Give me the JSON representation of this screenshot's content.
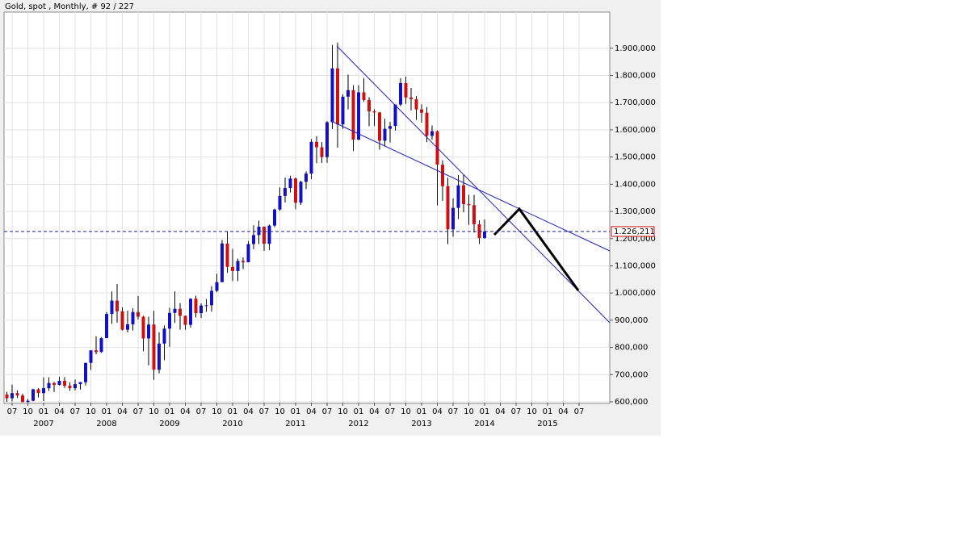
{
  "chart_data": {
    "type": "candlestick",
    "title": "Gold, spot , Monthly, # 92 / 227",
    "up_color": "#1010c8",
    "down_color": "#d01010",
    "grid": true,
    "open": [
      627,
      613,
      632,
      623,
      599,
      604,
      646,
      632,
      650,
      669,
      662,
      677,
      659,
      650,
      665,
      672,
      743,
      789,
      783,
      834,
      923,
      972,
      933,
      865,
      885,
      930,
      913,
      833,
      884,
      718,
      814,
      869,
      927,
      942,
      916,
      883,
      979,
      926,
      954,
      955,
      1008,
      1040,
      1182,
      1096,
      1081,
      1118,
      1113,
      1180,
      1213,
      1244,
      1181,
      1248,
      1307,
      1357,
      1386,
      1421,
      1332,
      1409,
      1439,
      1556,
      1536,
      1500,
      1628,
      1826,
      1620,
      1722,
      1746,
      1564,
      1738,
      1710,
      1668,
      1664,
      1560,
      1604,
      1614,
      1693,
      1772,
      1719,
      1713,
      1675,
      1663,
      1578,
      1595,
      1472,
      1393,
      1234,
      1313,
      1396,
      1327,
      1323,
      1253,
      1202
    ],
    "high": [
      637,
      663,
      642,
      630,
      610,
      648,
      650,
      690,
      690,
      673,
      692,
      691,
      672,
      682,
      673,
      744,
      790,
      841,
      838,
      930,
      1006,
      1033,
      947,
      935,
      944,
      989,
      916,
      913,
      935,
      856,
      881,
      946,
      1006,
      963,
      917,
      981,
      990,
      962,
      978,
      1025,
      1071,
      1195,
      1227,
      1162,
      1127,
      1131,
      1191,
      1249,
      1266,
      1245,
      1252,
      1310,
      1388,
      1424,
      1431,
      1425,
      1413,
      1447,
      1566,
      1577,
      1555,
      1632,
      1912,
      1921,
      1731,
      1803,
      1764,
      1764,
      1791,
      1720,
      1676,
      1666,
      1641,
      1629,
      1693,
      1790,
      1796,
      1754,
      1724,
      1694,
      1684,
      1616,
      1598,
      1488,
      1424,
      1348,
      1434,
      1434,
      1361,
      1361,
      1267,
      1270
    ],
    "low": [
      600,
      602,
      614,
      598,
      598,
      602,
      616,
      603,
      640,
      636,
      660,
      651,
      640,
      642,
      645,
      660,
      717,
      775,
      780,
      834,
      887,
      891,
      862,
      855,
      862,
      903,
      786,
      734,
      681,
      705,
      753,
      802,
      890,
      865,
      865,
      873,
      910,
      908,
      931,
      931,
      1003,
      1043,
      1074,
      1044,
      1044,
      1088,
      1113,
      1161,
      1180,
      1155,
      1158,
      1242,
      1302,
      1333,
      1370,
      1308,
      1324,
      1382,
      1419,
      1477,
      1478,
      1479,
      1603,
      1535,
      1604,
      1675,
      1522,
      1562,
      1704,
      1613,
      1614,
      1527,
      1540,
      1554,
      1597,
      1687,
      1696,
      1671,
      1636,
      1626,
      1555,
      1564,
      1322,
      1339,
      1180,
      1207,
      1272,
      1297,
      1251,
      1222,
      1180,
      1200
    ],
    "close": [
      613,
      632,
      623,
      599,
      604,
      646,
      632,
      650,
      669,
      662,
      677,
      659,
      650,
      665,
      672,
      743,
      789,
      783,
      834,
      923,
      972,
      933,
      865,
      885,
      930,
      913,
      833,
      884,
      718,
      814,
      869,
      927,
      942,
      916,
      883,
      979,
      926,
      954,
      955,
      1008,
      1040,
      1182,
      1096,
      1081,
      1118,
      1113,
      1180,
      1213,
      1244,
      1181,
      1248,
      1307,
      1357,
      1386,
      1421,
      1332,
      1409,
      1439,
      1556,
      1536,
      1500,
      1628,
      1826,
      1620,
      1722,
      1746,
      1564,
      1738,
      1710,
      1668,
      1664,
      1560,
      1604,
      1614,
      1693,
      1772,
      1719,
      1713,
      1675,
      1663,
      1578,
      1595,
      1472,
      1393,
      1234,
      1313,
      1396,
      1327,
      1323,
      1253,
      1202,
      1226
    ],
    "ylim": [
      597,
      2033
    ],
    "yticks": [
      {
        "value": 600,
        "label": "600,000"
      },
      {
        "value": 700,
        "label": "700,000"
      },
      {
        "value": 800,
        "label": "800,000"
      },
      {
        "value": 900,
        "label": "900,000"
      },
      {
        "value": 1000,
        "label": "1.000,000"
      },
      {
        "value": 1100,
        "label": "1.100,000"
      },
      {
        "value": 1200,
        "label": "1.200,000"
      },
      {
        "value": 1300,
        "label": "1.300,000"
      },
      {
        "value": 1400,
        "label": "1.400,000"
      },
      {
        "value": 1500,
        "label": "1.500,000"
      },
      {
        "value": 1600,
        "label": "1.600,000"
      },
      {
        "value": 1700,
        "label": "1.700,000"
      },
      {
        "value": 1800,
        "label": "1.800,000"
      },
      {
        "value": 1900,
        "label": "1.900,000"
      }
    ],
    "x_tick_labels": [
      "07",
      "10",
      "01",
      "04",
      "07",
      "10",
      "01",
      "04",
      "07",
      "10",
      "01",
      "04",
      "07",
      "10",
      "01",
      "04",
      "07",
      "10",
      "01",
      "04",
      "07",
      "10",
      "01",
      "04",
      "07",
      "10",
      "01",
      "04",
      "07",
      "10",
      "01",
      "04",
      "07",
      "10",
      "01",
      "04",
      "07"
    ],
    "year_labels": [
      "2007",
      "2008",
      "2009",
      "2010",
      "2011",
      "2012",
      "2013",
      "2014",
      "2015"
    ],
    "last_price": {
      "value": 1226.211,
      "label": "1.226,211"
    }
  }
}
